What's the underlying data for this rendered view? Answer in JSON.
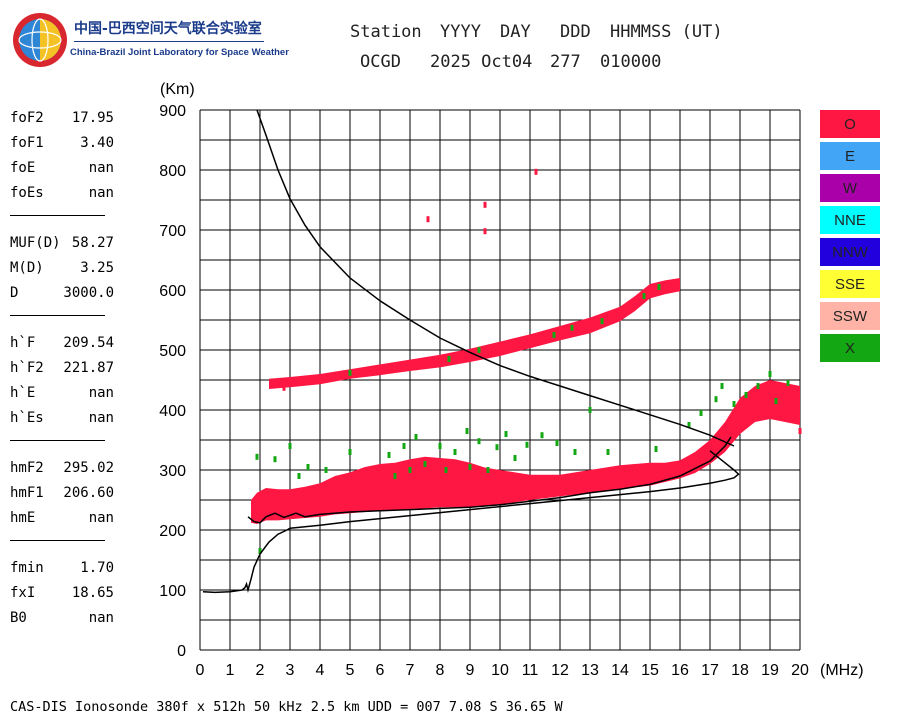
{
  "logo": {
    "name_cn": "中国-巴西空间天气联合实验室",
    "name_en": "China-Brazil Joint Laboratory for Space Weather"
  },
  "header": {
    "labels": [
      "Station",
      "YYYY",
      "DAY",
      "DDD",
      "HHMMSS (UT)"
    ],
    "values": [
      "OCGD",
      "2025 Oct04",
      "277",
      "010000"
    ]
  },
  "parameters": [
    [
      {
        "key": "foF2",
        "value": "17.95"
      },
      {
        "key": "foF1",
        "value": "3.40"
      },
      {
        "key": "foE",
        "value": "nan"
      },
      {
        "key": "foEs",
        "value": "nan"
      }
    ],
    [
      {
        "key": "MUF(D)",
        "value": "58.27"
      },
      {
        "key": "M(D)",
        "value": "3.25"
      },
      {
        "key": "D",
        "value": "3000.0"
      }
    ],
    [
      {
        "key": "h`F",
        "value": "209.54"
      },
      {
        "key": "h`F2",
        "value": "221.87"
      },
      {
        "key": "h`E",
        "value": "nan"
      },
      {
        "key": "h`Es",
        "value": "nan"
      }
    ],
    [
      {
        "key": "hmF2",
        "value": "295.02"
      },
      {
        "key": "hmF1",
        "value": "206.60"
      },
      {
        "key": "hmE",
        "value": "nan"
      }
    ],
    [
      {
        "key": "fmin",
        "value": "1.70"
      },
      {
        "key": "fxI",
        "value": "18.65"
      },
      {
        "key": "B0",
        "value": "nan"
      }
    ]
  ],
  "legend": [
    {
      "label": "O",
      "color": "#ff1744"
    },
    {
      "label": "E",
      "color": "#42a5f5"
    },
    {
      "label": "W",
      "color": "#aa00aa"
    },
    {
      "label": "NNE",
      "color": "#00ffff"
    },
    {
      "label": "NNW",
      "color": "#2200dd"
    },
    {
      "label": "SSE",
      "color": "#ffff33"
    },
    {
      "label": "SSW",
      "color": "#ffb3a7"
    },
    {
      "label": "X",
      "color": "#13a813"
    }
  ],
  "footer": "CAS-DIS Ionosonde 380f x 512h 50 kHz 2.5 km UDD = 007 7.08 S 36.65 W",
  "chart_data": {
    "type": "scatter",
    "xlabel": "(MHz)",
    "ylabel": "(Km)",
    "xlim": [
      0,
      20
    ],
    "ylim": [
      0,
      900
    ],
    "x_ticks": [
      "0",
      "1",
      "2",
      "3",
      "4",
      "5",
      "6",
      "7",
      "8",
      "9",
      "10",
      "11",
      "12",
      "13",
      "14",
      "15",
      "16",
      "17",
      "18",
      "19",
      "20"
    ],
    "y_ticks": [
      "0",
      "100",
      "200",
      "300",
      "400",
      "500",
      "600",
      "700",
      "800",
      "900"
    ],
    "grid": true,
    "series": [
      {
        "name": "O",
        "color": "#ff1744",
        "bands": [
          {
            "x": [
              1.7,
              1.9,
              2.2,
              2.6,
              3.0,
              3.5,
              4.0,
              4.5,
              5.0,
              5.5,
              6.0,
              6.5,
              7.0,
              7.5,
              8.0,
              8.5,
              9.0,
              9.5,
              10.0,
              11.0,
              12.0,
              13.0,
              14.0,
              15.0,
              15.5,
              16.0,
              16.5,
              17.0,
              17.5,
              18.0,
              18.5,
              19.0,
              19.5,
              20.0
            ],
            "lower": [
              212,
              210,
              216,
              216,
              218,
              220,
              222,
              226,
              228,
              230,
              232,
              232,
              235,
              236,
              238,
              238,
              238,
              240,
              242,
              250,
              256,
              262,
              268,
              274,
              280,
              286,
              295,
              310,
              330,
              360,
              380,
              385,
              380,
              375
            ],
            "upper": [
              250,
              262,
              270,
              268,
              268,
              272,
              278,
              290,
              296,
              305,
              310,
              312,
              318,
              322,
              320,
              318,
              312,
              304,
              300,
              292,
              292,
              300,
              308,
              312,
              312,
              316,
              330,
              350,
              380,
              420,
              440,
              450,
              445,
              440
            ]
          },
          {
            "x": [
              2.3,
              3.0,
              4.0,
              5.0,
              6.0,
              7.0,
              8.0,
              9.0,
              10.0,
              11.0,
              12.0,
              13.0,
              14.0,
              14.5,
              15.0,
              15.5,
              16.0
            ],
            "lower": [
              435,
              438,
              443,
              452,
              458,
              465,
              471,
              480,
              490,
              503,
              516,
              528,
              548,
              565,
              586,
              593,
              598
            ],
            "upper": [
              452,
              455,
              460,
              468,
              476,
              484,
              492,
              502,
              514,
              526,
              540,
              554,
              572,
              590,
              610,
              616,
              620
            ]
          }
        ],
        "points": [
          {
            "x": 7.6,
            "y": 718
          },
          {
            "x": 9.5,
            "y": 742
          },
          {
            "x": 9.5,
            "y": 698
          },
          {
            "x": 11.2,
            "y": 797
          },
          {
            "x": 20.0,
            "y": 365
          },
          {
            "x": 2.8,
            "y": 437
          },
          {
            "x": 3.2,
            "y": 446
          }
        ]
      },
      {
        "name": "X",
        "color": "#13a813",
        "bands": [],
        "points": [
          {
            "x": 2.0,
            "y": 165
          },
          {
            "x": 2.5,
            "y": 318
          },
          {
            "x": 3.0,
            "y": 340
          },
          {
            "x": 3.3,
            "y": 290
          },
          {
            "x": 3.6,
            "y": 305
          },
          {
            "x": 4.2,
            "y": 300
          },
          {
            "x": 5.0,
            "y": 330
          },
          {
            "x": 6.3,
            "y": 325
          },
          {
            "x": 6.5,
            "y": 290
          },
          {
            "x": 6.8,
            "y": 340
          },
          {
            "x": 7.0,
            "y": 300
          },
          {
            "x": 7.2,
            "y": 355
          },
          {
            "x": 7.5,
            "y": 310
          },
          {
            "x": 8.0,
            "y": 340
          },
          {
            "x": 8.2,
            "y": 300
          },
          {
            "x": 8.5,
            "y": 330
          },
          {
            "x": 8.9,
            "y": 365
          },
          {
            "x": 9.0,
            "y": 305
          },
          {
            "x": 9.3,
            "y": 348
          },
          {
            "x": 9.6,
            "y": 300
          },
          {
            "x": 9.9,
            "y": 338
          },
          {
            "x": 10.2,
            "y": 360
          },
          {
            "x": 10.5,
            "y": 320
          },
          {
            "x": 10.9,
            "y": 342
          },
          {
            "x": 11.4,
            "y": 358
          },
          {
            "x": 11.9,
            "y": 345
          },
          {
            "x": 12.5,
            "y": 330
          },
          {
            "x": 13.0,
            "y": 400
          },
          {
            "x": 13.6,
            "y": 330
          },
          {
            "x": 15.2,
            "y": 335
          },
          {
            "x": 16.3,
            "y": 375
          },
          {
            "x": 16.7,
            "y": 395
          },
          {
            "x": 17.2,
            "y": 418
          },
          {
            "x": 17.4,
            "y": 440
          },
          {
            "x": 17.8,
            "y": 410
          },
          {
            "x": 18.2,
            "y": 425
          },
          {
            "x": 18.6,
            "y": 440
          },
          {
            "x": 19.0,
            "y": 460
          },
          {
            "x": 19.2,
            "y": 415
          },
          {
            "x": 19.6,
            "y": 445
          },
          {
            "x": 5.0,
            "y": 462
          },
          {
            "x": 8.3,
            "y": 485
          },
          {
            "x": 9.3,
            "y": 500
          },
          {
            "x": 11.8,
            "y": 525
          },
          {
            "x": 12.4,
            "y": 537
          },
          {
            "x": 13.4,
            "y": 548
          },
          {
            "x": 14.8,
            "y": 590
          },
          {
            "x": 15.3,
            "y": 605
          },
          {
            "x": 1.9,
            "y": 322
          }
        ]
      }
    ],
    "profiles": [
      {
        "name": "profile",
        "x": [
          0.1,
          0.5,
          1.0,
          1.4,
          1.5,
          1.55,
          1.6,
          1.7,
          1.8,
          2.0,
          2.3,
          2.6,
          2.9,
          3.0,
          4.0,
          5.0,
          6.0,
          7.0,
          8.0,
          9.0,
          10.0,
          11.0,
          12.0,
          13.0,
          14.0,
          15.0,
          16.0,
          16.5,
          17.0,
          17.5,
          17.8,
          17.95,
          17.8,
          17.5,
          17.0
        ],
        "y": [
          97,
          96,
          97,
          100,
          104,
          110,
          100,
          118,
          138,
          160,
          180,
          193,
          200,
          203,
          208,
          214,
          219,
          224,
          229,
          234,
          239,
          244,
          249,
          254,
          259,
          264,
          270,
          274,
          278,
          283,
          287,
          293,
          300,
          312,
          332
        ]
      },
      {
        "name": "trace",
        "x": [
          1.6,
          1.8,
          2.0,
          2.2,
          2.5,
          2.8,
          3.2,
          3.5,
          4.0,
          5.0,
          6.0,
          7.0,
          8.0,
          9.0,
          10.0,
          11.0,
          12.0,
          13.0,
          14.0,
          15.0,
          16.0,
          17.0,
          17.5,
          17.7
        ],
        "y": [
          222,
          214,
          212,
          222,
          228,
          221,
          228,
          222,
          226,
          230,
          232,
          234,
          236,
          238,
          242,
          248,
          254,
          262,
          268,
          276,
          290,
          315,
          340,
          355
        ]
      },
      {
        "name": "MUF",
        "x": [
          1.9,
          2.2,
          2.6,
          3.0,
          3.5,
          4.0,
          5.0,
          6.0,
          7.0,
          8.0,
          9.0,
          10.0,
          11.0,
          12.0,
          13.0,
          14.0,
          15.0,
          16.0,
          17.0,
          17.8
        ],
        "y": [
          900,
          858,
          800,
          752,
          708,
          672,
          620,
          582,
          550,
          520,
          496,
          474,
          456,
          440,
          424,
          408,
          392,
          376,
          358,
          340
        ]
      }
    ]
  }
}
